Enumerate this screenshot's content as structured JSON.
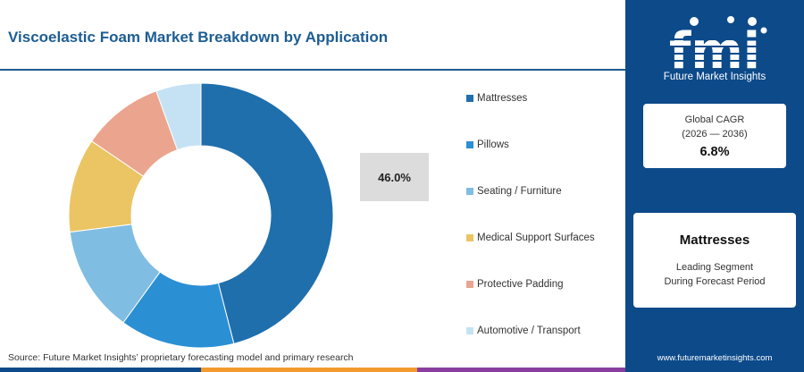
{
  "header": {
    "title": "Viscoelastic Foam Market Breakdown by Application"
  },
  "chart_data": {
    "type": "pie",
    "variant": "donut",
    "categories": [
      "Mattresses",
      "Pillows",
      "Seating / Furniture",
      "Medical Support Surfaces",
      "Protective Padding",
      "Automotive / Transport"
    ],
    "values": [
      46.0,
      14.0,
      13.0,
      11.5,
      10.0,
      5.5
    ],
    "colors": [
      "#1f6fad",
      "#2b8fd4",
      "#80bde3",
      "#ebc563",
      "#eba58e",
      "#c5e2f5"
    ],
    "highlight_label": "46.0%",
    "legend_position": "right"
  },
  "source": "Source: Future Market Insights’ proprietary forecasting model and primary research",
  "brand": {
    "logo_text": "fmi",
    "tagline": "Future Market Insights",
    "website": "www.futuremarketinsights.com"
  },
  "cagr": {
    "label_line1": "Global CAGR",
    "label_line2": "(2026 — 2036)",
    "value": "6.8%"
  },
  "segment": {
    "name": "Mattresses",
    "desc_line1": "Leading Segment",
    "desc_line2": "During Forecast Period"
  },
  "footer_bar_colors": [
    "#0c4a8a",
    "#f29a2e",
    "#8a3fa0"
  ]
}
